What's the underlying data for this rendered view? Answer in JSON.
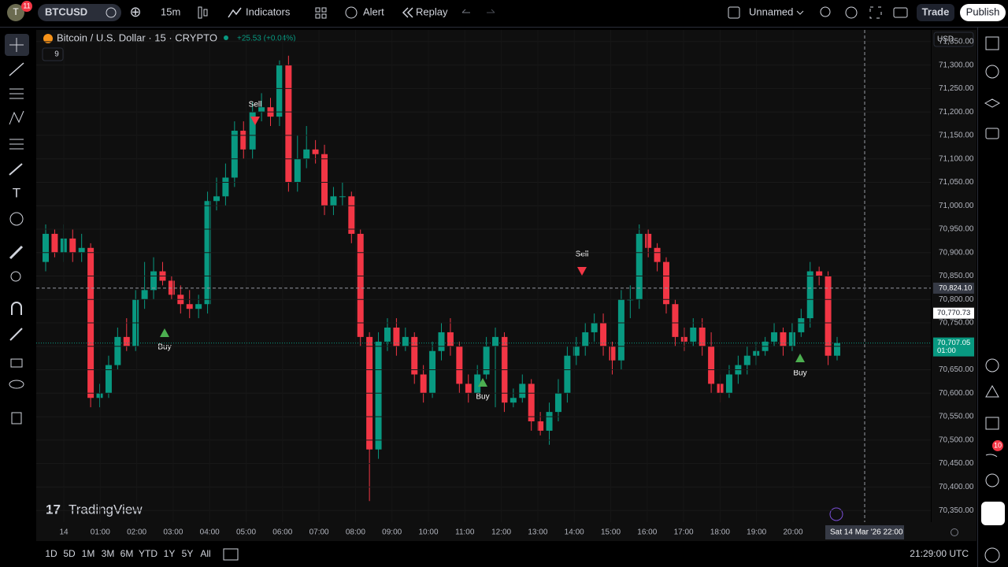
{
  "header": {
    "symbol": "BTCUSD",
    "badge": "11",
    "interval": "15m",
    "indicators": "Indicators",
    "alert": "Alert",
    "replay": "Replay",
    "layout_name": "Unnamed",
    "trade": "Trade",
    "publish": "Publish"
  },
  "legend": {
    "title": "Bitcoin / U.S. Dollar · 15 · CRYPTO",
    "change": "+25.53 (+0.04%)",
    "indicator_count": "9"
  },
  "currency": "USD",
  "watermark": "TradingView",
  "signals": [
    {
      "text": "Sell",
      "kind": "sell"
    },
    {
      "text": "Buy",
      "kind": "buy"
    },
    {
      "text": "Buy",
      "kind": "buy"
    },
    {
      "text": "Sell",
      "kind": "sell"
    },
    {
      "text": "Buy",
      "kind": "buy"
    }
  ],
  "time_axis": [
    "14",
    "01:00",
    "02:00",
    "03:00",
    "04:00",
    "05:00",
    "06:00",
    "07:00",
    "08:00",
    "09:00",
    "10:00",
    "11:00",
    "12:00",
    "13:00",
    "14:00",
    "15:00",
    "16:00",
    "17:00",
    "18:00",
    "19:00",
    "20:00"
  ],
  "crosshair_time": "Sat 14 Mar '26   22:00",
  "clock": "21:29:00 UTC",
  "ranges": [
    "1D",
    "5D",
    "1M",
    "3M",
    "6M",
    "YTD",
    "1Y",
    "5Y",
    "All"
  ],
  "notification_badge": "10",
  "chart_data": {
    "type": "candlestick",
    "up_color": "#089981",
    "down_color": "#f23645",
    "ylim": [
      70325,
      71375
    ],
    "yticks": [
      {
        "value": 71350,
        "label": "71,350.00"
      },
      {
        "value": 71300,
        "label": "71,300.00"
      },
      {
        "value": 71250,
        "label": "71,250.00"
      },
      {
        "value": 71200,
        "label": "71,200.00"
      },
      {
        "value": 71150,
        "label": "71,150.00"
      },
      {
        "value": 71100,
        "label": "71,100.00"
      },
      {
        "value": 71050,
        "label": "71,050.00"
      },
      {
        "value": 71000,
        "label": "71,000.00"
      },
      {
        "value": 70950,
        "label": "70,950.00"
      },
      {
        "value": 70900,
        "label": "70,900.00"
      },
      {
        "value": 70850,
        "label": "70,850.00"
      },
      {
        "value": 70800,
        "label": "70,800.00"
      },
      {
        "value": 70750,
        "label": "70,750.00"
      },
      {
        "value": 70700,
        "label": "70,700.00"
      },
      {
        "value": 70650,
        "label": "70,650.00"
      },
      {
        "value": 70600,
        "label": "70,600.00"
      },
      {
        "value": 70550,
        "label": "70,550.00"
      },
      {
        "value": 70500,
        "label": "70,500.00"
      },
      {
        "value": 70450,
        "label": "70,450.00"
      },
      {
        "value": 70400,
        "label": "70,400.00"
      },
      {
        "value": 70350,
        "label": "70,350.00"
      }
    ],
    "price_tags": [
      {
        "value": 70824.1,
        "label": "70,824.10",
        "kind": "crosshair"
      },
      {
        "value": 70770.73,
        "label": "70,770.73",
        "kind": "level"
      },
      {
        "value": 70707.05,
        "label": "70,707.05",
        "kind": "last",
        "countdown": "01:00"
      }
    ],
    "open": [
      70880,
      70940,
      70900,
      70930,
      70900,
      70910,
      70590,
      70600,
      70660,
      70720,
      70700,
      70800,
      70820,
      70860,
      70840,
      70810,
      70790,
      70780,
      70790,
      71010,
      71020,
      71060,
      71160,
      71120,
      71200,
      71210,
      71190,
      71300,
      71050,
      71100,
      71120,
      71110,
      71000,
      71020,
      71020,
      70940,
      70720,
      70480,
      70710,
      70740,
      70700,
      70720,
      70640,
      70600,
      70690,
      70730,
      70700,
      70620,
      70600,
      70640,
      70700,
      70720,
      70580,
      70590,
      70620,
      70540,
      70520,
      70560,
      70600,
      70680,
      70700,
      70730,
      70750,
      70700,
      70670,
      70800,
      70800,
      70940,
      70910,
      70880,
      70790,
      70720,
      70710,
      70740,
      70700,
      70620,
      70600,
      70640,
      70660,
      70680,
      70690,
      70710,
      70730,
      70700,
      70730,
      70760,
      70860,
      70850,
      70680
    ],
    "high": [
      70960,
      70950,
      70960,
      70950,
      70940,
      70920,
      70620,
      70680,
      70740,
      70760,
      70820,
      70880,
      70890,
      70880,
      70850,
      70830,
      70820,
      70810,
      71030,
      71060,
      71090,
      71180,
      71180,
      71220,
      71240,
      71230,
      71310,
      71320,
      71150,
      71170,
      71140,
      71130,
      71040,
      71050,
      71030,
      70950,
      70730,
      70730,
      70760,
      70760,
      70740,
      70730,
      70660,
      70710,
      70750,
      70760,
      70710,
      70640,
      70660,
      70720,
      70740,
      70730,
      70610,
      70640,
      70630,
      70560,
      70580,
      70630,
      70700,
      70720,
      70750,
      70770,
      70770,
      70710,
      70820,
      70830,
      70960,
      70950,
      70920,
      70890,
      70800,
      70740,
      70760,
      70760,
      70730,
      70640,
      70660,
      70680,
      70700,
      70710,
      70720,
      70750,
      70740,
      70750,
      70780,
      70880,
      70870,
      70860,
      70720
    ],
    "low": [
      70860,
      70890,
      70880,
      70880,
      70880,
      70570,
      70570,
      70590,
      70650,
      70690,
      70690,
      70780,
      70800,
      70830,
      70800,
      70770,
      70760,
      70760,
      70770,
      70990,
      71000,
      71040,
      71100,
      71100,
      71180,
      71170,
      71170,
      71030,
      71030,
      71080,
      71090,
      70980,
      70980,
      71000,
      70920,
      70700,
      70370,
      70460,
      70690,
      70680,
      70690,
      70620,
      70580,
      70590,
      70670,
      70680,
      70600,
      70580,
      70610,
      70630,
      70570,
      70560,
      70570,
      70580,
      70520,
      70510,
      70490,
      70540,
      70580,
      70660,
      70680,
      70710,
      70680,
      70640,
      70650,
      70760,
      70780,
      70890,
      70860,
      70770,
      70700,
      70690,
      70700,
      70680,
      70600,
      70580,
      70590,
      70620,
      70640,
      70660,
      70680,
      70700,
      70680,
      70690,
      70720,
      70740,
      70830,
      70660,
      70670
    ],
    "close": [
      70940,
      70900,
      70930,
      70900,
      70910,
      70590,
      70600,
      70660,
      70720,
      70700,
      70800,
      70820,
      70860,
      70840,
      70810,
      70790,
      70780,
      70790,
      71010,
      71020,
      71060,
      71160,
      71120,
      71200,
      71210,
      71190,
      71300,
      71050,
      71100,
      71120,
      71110,
      71000,
      71020,
      71020,
      70940,
      70720,
      70480,
      70710,
      70740,
      70700,
      70720,
      70640,
      70600,
      70690,
      70730,
      70700,
      70620,
      70600,
      70640,
      70700,
      70720,
      70580,
      70590,
      70620,
      70540,
      70520,
      70560,
      70600,
      70680,
      70700,
      70730,
      70750,
      70700,
      70670,
      70800,
      70800,
      70940,
      70910,
      70880,
      70790,
      70720,
      70710,
      70740,
      70700,
      70620,
      70600,
      70640,
      70660,
      70680,
      70690,
      70710,
      70730,
      70700,
      70730,
      70760,
      70860,
      70850,
      70680,
      70707
    ]
  }
}
